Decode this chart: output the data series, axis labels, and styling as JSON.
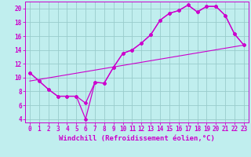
{
  "title": "",
  "xlabel": "Windchill (Refroidissement éolien,°C)",
  "ylabel": "",
  "bg_color": "#c0eeee",
  "line_color": "#cc00cc",
  "grid_color": "#99cccc",
  "xlim": [
    -0.5,
    23.5
  ],
  "ylim": [
    3.5,
    21.0
  ],
  "xticks": [
    0,
    1,
    2,
    3,
    4,
    5,
    6,
    7,
    8,
    9,
    10,
    11,
    12,
    13,
    14,
    15,
    16,
    17,
    18,
    19,
    20,
    21,
    22,
    23
  ],
  "yticks": [
    4,
    6,
    8,
    10,
    12,
    14,
    16,
    18,
    20
  ],
  "line1_x": [
    0,
    1,
    2,
    3,
    4,
    5,
    6,
    7,
    8,
    9,
    10,
    11,
    12,
    13,
    14,
    15,
    16,
    17,
    18,
    19,
    20,
    21,
    22,
    23
  ],
  "line1_y": [
    10.7,
    9.5,
    8.3,
    7.3,
    7.3,
    7.3,
    4.0,
    9.3,
    9.2,
    11.5,
    13.5,
    14.0,
    15.0,
    16.2,
    18.3,
    19.3,
    19.7,
    20.5,
    19.5,
    20.3,
    20.3,
    19.0,
    16.3,
    14.7
  ],
  "line2_x": [
    0,
    1,
    2,
    3,
    4,
    5,
    6,
    7,
    8,
    9,
    10,
    11,
    12,
    13,
    14,
    15,
    16,
    17,
    18,
    19,
    20,
    21,
    22,
    23
  ],
  "line2_y": [
    10.7,
    9.5,
    8.3,
    7.3,
    7.3,
    7.3,
    6.3,
    9.3,
    9.2,
    11.5,
    13.5,
    14.0,
    15.0,
    16.2,
    18.3,
    19.3,
    19.7,
    20.5,
    19.5,
    20.3,
    20.3,
    19.0,
    16.3,
    14.7
  ],
  "line3_x": [
    0,
    23
  ],
  "line3_y": [
    9.5,
    14.7
  ],
  "tick_fontsize": 5.5,
  "xlabel_fontsize": 6.5
}
